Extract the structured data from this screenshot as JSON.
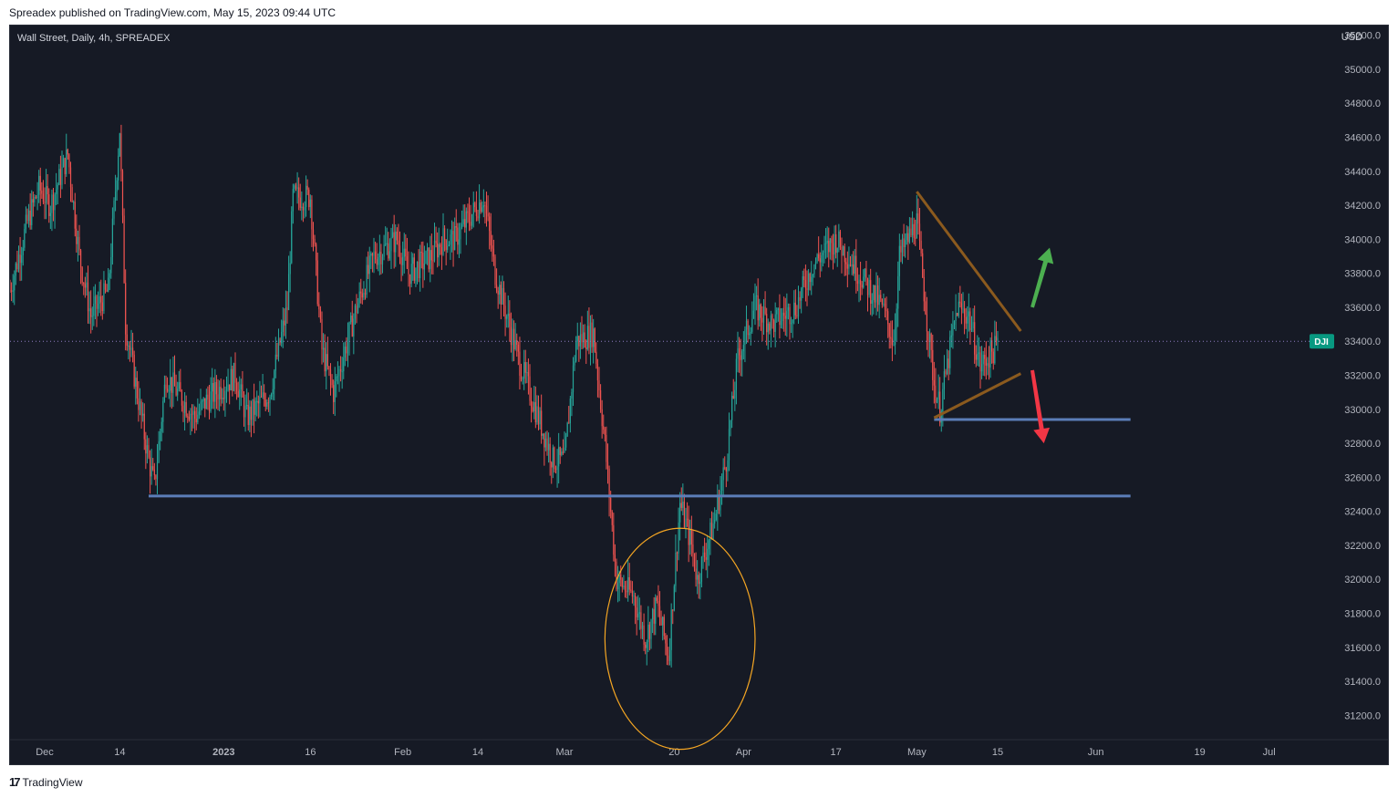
{
  "header": {
    "published_line": "Spreadex published on TradingView.com, May 15, 2023 09:44 UTC"
  },
  "chart_header": {
    "symbol_line": "Wall Street, Daily, 4h, SPREADEX",
    "currency": "USD",
    "price_tag": "DJI"
  },
  "footer": {
    "logo_icon": "tradingview-logo-icon",
    "logo_text": "TradingView"
  },
  "colors": {
    "background": "#161a25",
    "up": "#26a69a",
    "down": "#ef5350",
    "support_line": "#5b7db8",
    "trend_line": "#8b5a1e",
    "circle": "#f5a623",
    "arrow_up": "#4caf50",
    "arrow_down": "#f23645",
    "price_tag_bg": "#089981"
  },
  "chart_data": {
    "type": "candlestick",
    "title": "Wall Street, Daily, 4h, SPREADEX",
    "ylabel": "USD",
    "ylim": [
      31100,
      35300
    ],
    "y_ticks": [
      "35200.0",
      "35000.0",
      "34800.0",
      "34600.0",
      "34400.0",
      "34200.0",
      "34000.0",
      "33800.0",
      "33600.0",
      "33400.0",
      "33200.0",
      "33000.0",
      "32800.0",
      "32600.0",
      "32400.0",
      "32200.0",
      "32000.0",
      "31800.0",
      "31600.0",
      "31400.0",
      "31200.0"
    ],
    "x_ticks": [
      {
        "label": "Dec",
        "bold": false,
        "date": "2022-12-01"
      },
      {
        "label": "14",
        "bold": false,
        "date": "2022-12-14"
      },
      {
        "label": "2023",
        "bold": true,
        "date": "2023-01-01"
      },
      {
        "label": "16",
        "bold": false,
        "date": "2023-01-16"
      },
      {
        "label": "Feb",
        "bold": false,
        "date": "2023-02-01"
      },
      {
        "label": "14",
        "bold": false,
        "date": "2023-02-14"
      },
      {
        "label": "Mar",
        "bold": false,
        "date": "2023-03-01"
      },
      {
        "label": "20",
        "bold": false,
        "date": "2023-03-20"
      },
      {
        "label": "Apr",
        "bold": false,
        "date": "2023-04-01"
      },
      {
        "label": "17",
        "bold": false,
        "date": "2023-04-17"
      },
      {
        "label": "May",
        "bold": false,
        "date": "2023-05-01"
      },
      {
        "label": "15",
        "bold": false,
        "date": "2023-05-15"
      },
      {
        "label": "Jun",
        "bold": false,
        "date": "2023-06-01"
      },
      {
        "label": "19",
        "bold": false,
        "date": "2023-06-19"
      },
      {
        "label": "Jul",
        "bold": false,
        "date": "2023-07-01"
      }
    ],
    "x_range": [
      "2022-11-25",
      "2023-07-08"
    ],
    "price_path": [
      [
        "2022-11-25",
        33700
      ],
      [
        "2022-11-28",
        34100
      ],
      [
        "2022-11-30",
        34300
      ],
      [
        "2022-12-02",
        34200
      ],
      [
        "2022-12-05",
        34500
      ],
      [
        "2022-12-07",
        33900
      ],
      [
        "2022-12-09",
        33550
      ],
      [
        "2022-12-12",
        33700
      ],
      [
        "2022-12-14",
        34650
      ],
      [
        "2022-12-15",
        33500
      ],
      [
        "2022-12-19",
        32700
      ],
      [
        "2022-12-20",
        32550
      ],
      [
        "2022-12-22",
        33200
      ],
      [
        "2022-12-27",
        32950
      ],
      [
        "2022-12-29",
        33050
      ],
      [
        "2023-01-03",
        33200
      ],
      [
        "2023-01-05",
        32950
      ],
      [
        "2023-01-09",
        33100
      ],
      [
        "2023-01-12",
        33600
      ],
      [
        "2023-01-13",
        34250
      ],
      [
        "2023-01-16",
        34250
      ],
      [
        "2023-01-18",
        33350
      ],
      [
        "2023-01-20",
        33100
      ],
      [
        "2023-01-24",
        33600
      ],
      [
        "2023-01-27",
        33900
      ],
      [
        "2023-01-31",
        34000
      ],
      [
        "2023-02-02",
        33800
      ],
      [
        "2023-02-06",
        33900
      ],
      [
        "2023-02-08",
        34000
      ],
      [
        "2023-02-10",
        34000
      ],
      [
        "2023-02-13",
        34150
      ],
      [
        "2023-02-15",
        34250
      ],
      [
        "2023-02-17",
        33800
      ],
      [
        "2023-02-21",
        33300
      ],
      [
        "2023-02-24",
        33000
      ],
      [
        "2023-02-27",
        32700
      ],
      [
        "2023-03-01",
        32700
      ],
      [
        "2023-03-03",
        33400
      ],
      [
        "2023-03-06",
        33450
      ],
      [
        "2023-03-08",
        32800
      ],
      [
        "2023-03-10",
        32000
      ],
      [
        "2023-03-13",
        31900
      ],
      [
        "2023-03-15",
        31650
      ],
      [
        "2023-03-17",
        31850
      ],
      [
        "2023-03-19",
        31550
      ],
      [
        "2023-03-21",
        32450
      ],
      [
        "2023-03-23",
        32200
      ],
      [
        "2023-03-24",
        32000
      ],
      [
        "2023-03-27",
        32350
      ],
      [
        "2023-03-29",
        32700
      ],
      [
        "2023-03-31",
        33300
      ],
      [
        "2023-04-03",
        33600
      ],
      [
        "2023-04-06",
        33500
      ],
      [
        "2023-04-10",
        33600
      ],
      [
        "2023-04-13",
        33850
      ],
      [
        "2023-04-17",
        34000
      ],
      [
        "2023-04-19",
        33900
      ],
      [
        "2023-04-21",
        33800
      ],
      [
        "2023-04-25",
        33600
      ],
      [
        "2023-04-27",
        33400
      ],
      [
        "2023-04-28",
        33900
      ],
      [
        "2023-05-01",
        34100
      ],
      [
        "2023-05-03",
        33450
      ],
      [
        "2023-05-04",
        33150
      ],
      [
        "2023-05-05",
        33000
      ],
      [
        "2023-05-08",
        33600
      ],
      [
        "2023-05-10",
        33550
      ],
      [
        "2023-05-12",
        33250
      ],
      [
        "2023-05-15",
        33380
      ]
    ],
    "annotations": {
      "support_lines": [
        {
          "price": 32490,
          "from": "2022-12-19",
          "to": "2023-06-07"
        },
        {
          "price": 32940,
          "from": "2023-05-04",
          "to": "2023-06-07"
        }
      ],
      "trend_lines": [
        {
          "from": [
            "2023-05-01",
            34280
          ],
          "to": [
            "2023-05-19",
            33460
          ]
        },
        {
          "from": [
            "2023-05-04",
            32950
          ],
          "to": [
            "2023-05-19",
            33210
          ]
        }
      ],
      "circle": {
        "center": [
          "2023-03-21",
          31650
        ],
        "radius_days": 13,
        "radius_price": 650
      },
      "arrows": [
        {
          "direction": "up",
          "from": [
            "2023-05-21",
            33600
          ],
          "to": [
            "2023-05-24",
            33950
          ]
        },
        {
          "direction": "down",
          "from": [
            "2023-05-21",
            33230
          ],
          "to": [
            "2023-05-23",
            32800
          ]
        }
      ],
      "last_price": 33400
    }
  }
}
